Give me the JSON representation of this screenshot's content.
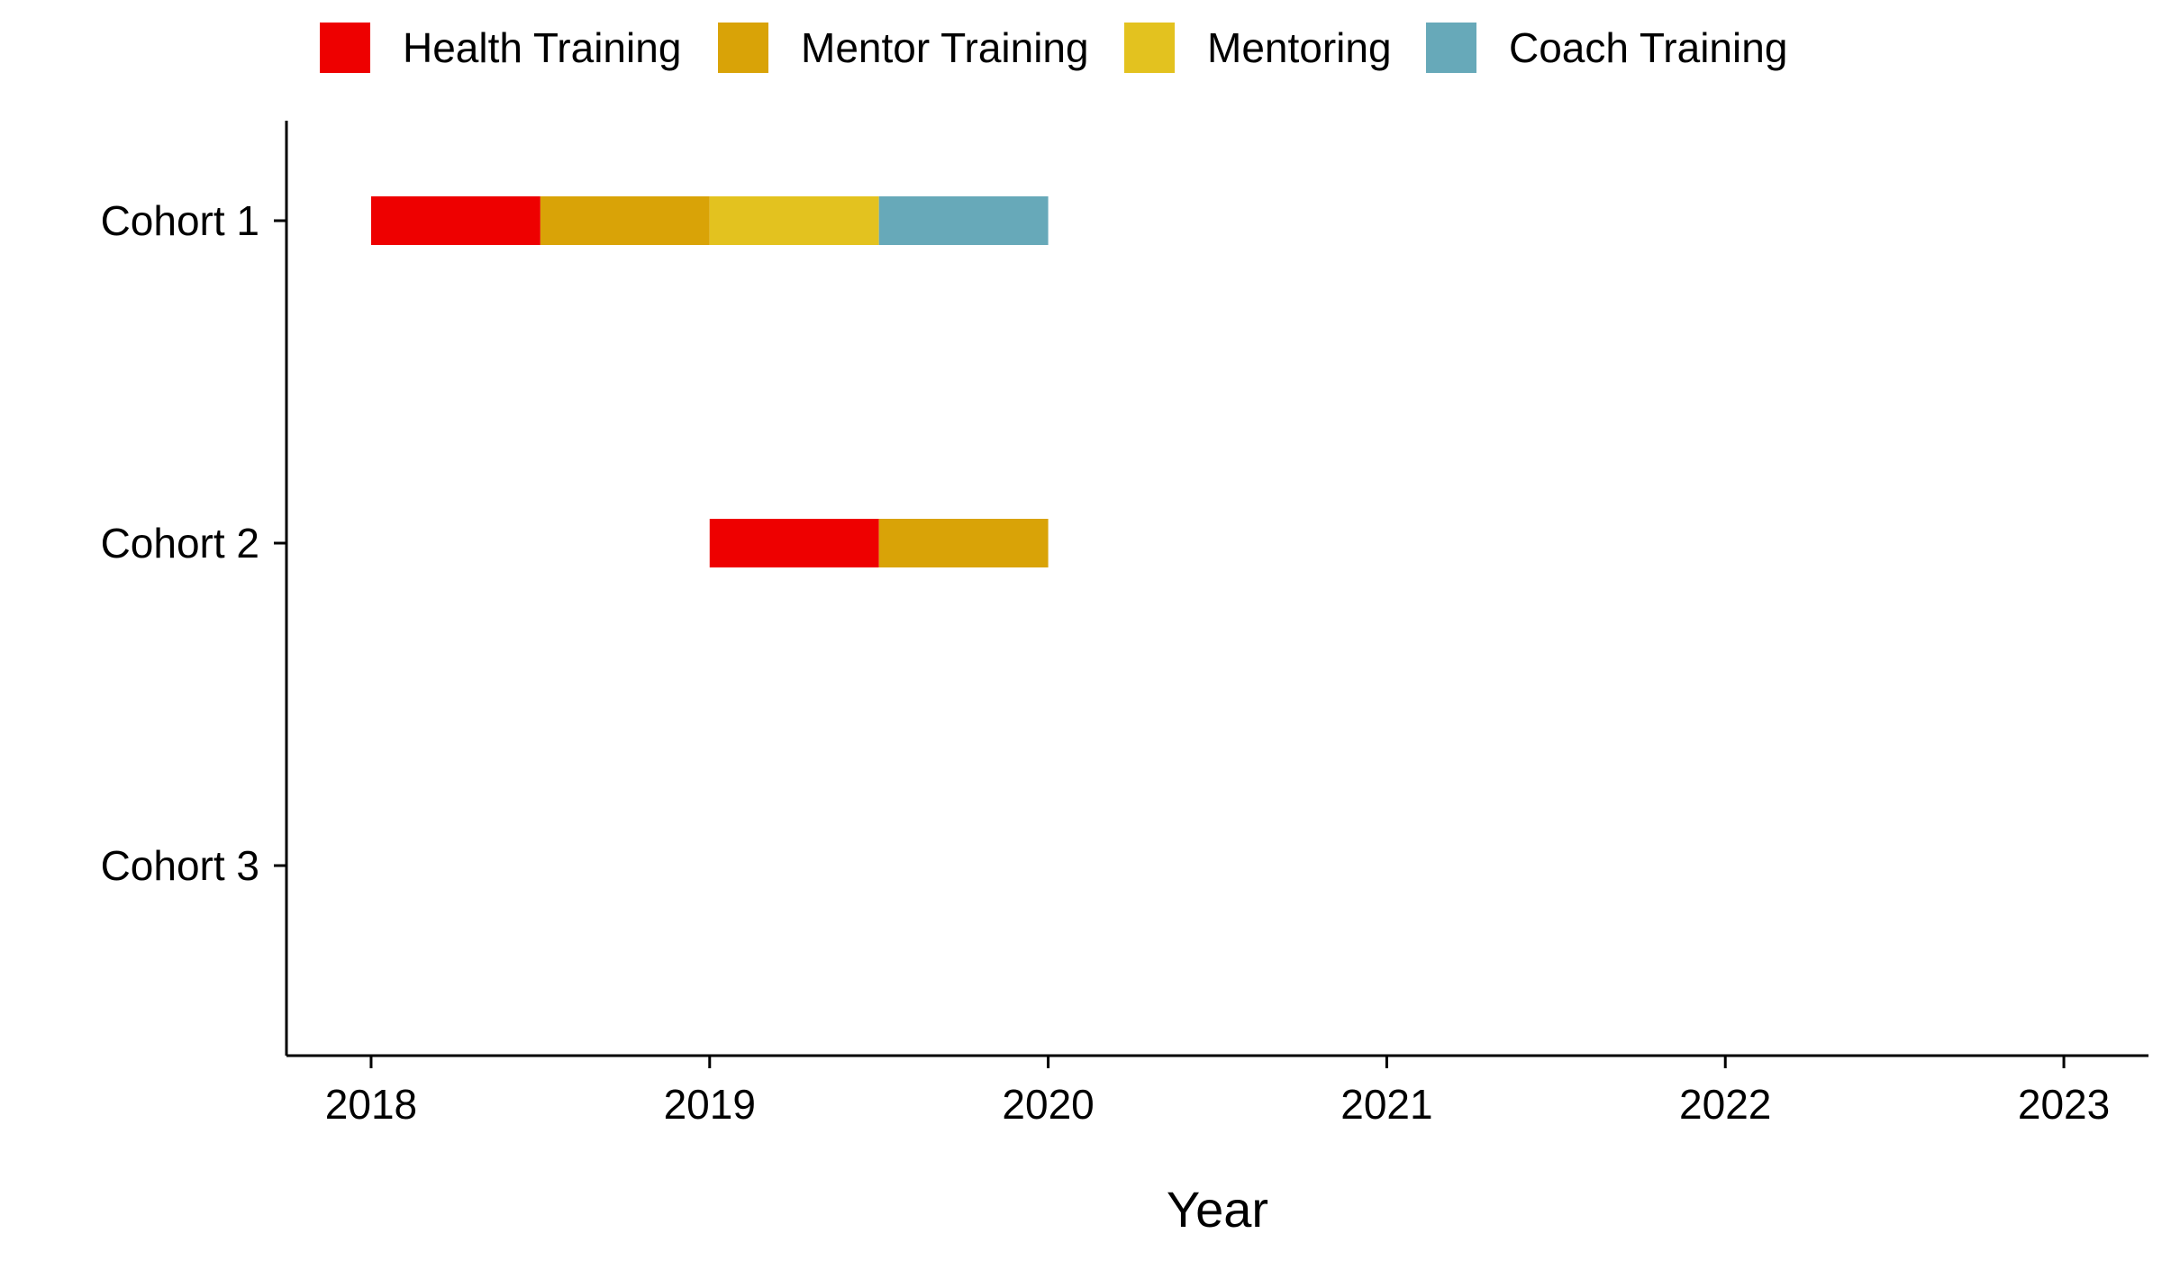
{
  "chart_data": {
    "type": "bar",
    "orientation": "horizontal-timeline",
    "title": "",
    "xlabel": "Year",
    "ylabel": "",
    "xlim": [
      2017.75,
      2023.25
    ],
    "x_ticks": [
      "2018",
      "2019",
      "2020",
      "2021",
      "2022",
      "2023"
    ],
    "categories": [
      "Cohort 1",
      "Cohort 2",
      "Cohort 3"
    ],
    "legend_position": "top",
    "grid": false,
    "series": [
      {
        "name": "Health Training",
        "color": "#EE0000"
      },
      {
        "name": "Mentor Training",
        "color": "#D9A307"
      },
      {
        "name": "Mentoring",
        "color": "#E3C21F"
      },
      {
        "name": "Coach Training",
        "color": "#67A9B9"
      }
    ],
    "segments": [
      {
        "category": "Cohort 1",
        "series": "Health Training",
        "start": 2018.0,
        "end": 2018.5
      },
      {
        "category": "Cohort 1",
        "series": "Mentor Training",
        "start": 2018.5,
        "end": 2019.0
      },
      {
        "category": "Cohort 1",
        "series": "Mentoring",
        "start": 2019.0,
        "end": 2019.5
      },
      {
        "category": "Cohort 1",
        "series": "Coach Training",
        "start": 2019.5,
        "end": 2020.0
      },
      {
        "category": "Cohort 2",
        "series": "Health Training",
        "start": 2019.0,
        "end": 2019.5
      },
      {
        "category": "Cohort 2",
        "series": "Mentor Training",
        "start": 2019.5,
        "end": 2020.0
      }
    ]
  }
}
